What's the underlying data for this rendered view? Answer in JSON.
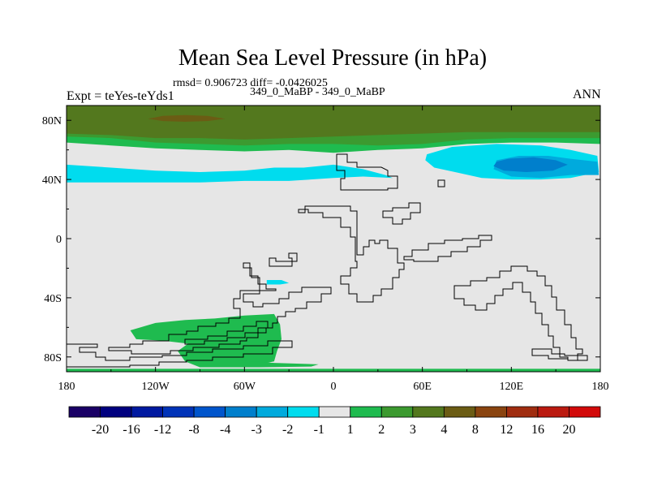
{
  "chart_data": {
    "type": "heatmap",
    "title": "Mean Sea Level Pressure (in hPa)",
    "subtitle_stats": "rmsd= 0.906723 diff= -0.0426025",
    "subtitle_runs": "349_0_MaBP - 349_0_MaBP",
    "left_label": "Expt = teYes-teYds1",
    "right_label": "ANN",
    "x_range": [
      -180,
      180
    ],
    "y_range": [
      -90,
      90
    ],
    "x_ticks": [
      {
        "value": -180,
        "label": "180"
      },
      {
        "value": -120,
        "label": "120W"
      },
      {
        "value": -60,
        "label": "60W"
      },
      {
        "value": 0,
        "label": "0"
      },
      {
        "value": 60,
        "label": "60E"
      },
      {
        "value": 120,
        "label": "120E"
      },
      {
        "value": 180,
        "label": "180"
      }
    ],
    "y_ticks": [
      {
        "value": 80,
        "label": "80N"
      },
      {
        "value": 40,
        "label": "40N"
      },
      {
        "value": 0,
        "label": "0"
      },
      {
        "value": -40,
        "label": "40S"
      },
      {
        "value": -80,
        "label": "80S"
      }
    ],
    "colorbar": {
      "levels": [
        "-20",
        "-16",
        "-12",
        "-8",
        "-4",
        "-3",
        "-2",
        "-1",
        "1",
        "2",
        "3",
        "4",
        "8",
        "12",
        "16",
        "20"
      ],
      "colors": [
        "#1a0066",
        "#00007f",
        "#0019a0",
        "#0033b8",
        "#0055cc",
        "#007fcc",
        "#00aadd",
        "#00dcee",
        "#e6e6e6",
        "#1fbb4f",
        "#3c9a30",
        "#53781e",
        "#6b5c14",
        "#8a4410",
        "#a02d10",
        "#bb1a10",
        "#d20a0a"
      ]
    },
    "background_color": "#e6e6e6",
    "regions": [
      {
        "name": "arctic-band-level-3",
        "color": "#3c9a30",
        "points": [
          [
            -180,
            68
          ],
          [
            -150,
            67
          ],
          [
            -120,
            64
          ],
          [
            -90,
            63
          ],
          [
            -60,
            62
          ],
          [
            -30,
            63
          ],
          [
            0,
            63
          ],
          [
            30,
            62
          ],
          [
            60,
            63
          ],
          [
            90,
            66
          ],
          [
            120,
            67
          ],
          [
            150,
            67
          ],
          [
            180,
            67
          ],
          [
            180,
            90
          ],
          [
            -180,
            90
          ]
        ]
      },
      {
        "name": "arctic-band-level-2",
        "color": "#1fbb4f",
        "points": [
          [
            -180,
            65
          ],
          [
            -150,
            63
          ],
          [
            -120,
            61
          ],
          [
            -90,
            60
          ],
          [
            -60,
            59
          ],
          [
            -30,
            60
          ],
          [
            0,
            58
          ],
          [
            30,
            60
          ],
          [
            60,
            61
          ],
          [
            90,
            64
          ],
          [
            120,
            65
          ],
          [
            150,
            65
          ],
          [
            180,
            64
          ],
          [
            180,
            68
          ],
          [
            150,
            68
          ],
          [
            120,
            68
          ],
          [
            90,
            67
          ],
          [
            60,
            64
          ],
          [
            30,
            63
          ],
          [
            0,
            64
          ],
          [
            -30,
            64
          ],
          [
            -60,
            63
          ],
          [
            -90,
            64
          ],
          [
            -120,
            65
          ],
          [
            -150,
            68
          ],
          [
            -180,
            69
          ]
        ]
      },
      {
        "name": "arctic-band-level-4",
        "color": "#53781e",
        "points": [
          [
            -180,
            90
          ],
          [
            -180,
            71
          ],
          [
            -150,
            70
          ],
          [
            -120,
            68
          ],
          [
            -90,
            68
          ],
          [
            -60,
            67
          ],
          [
            -30,
            68
          ],
          [
            0,
            69
          ],
          [
            30,
            70
          ],
          [
            60,
            71
          ],
          [
            90,
            72
          ],
          [
            120,
            72
          ],
          [
            150,
            72
          ],
          [
            180,
            72
          ],
          [
            180,
            90
          ]
        ]
      },
      {
        "name": "arctic-core-level-8",
        "color": "#6b5c14",
        "points": [
          [
            -125,
            81
          ],
          [
            -115,
            79.5
          ],
          [
            -100,
            79
          ],
          [
            -85,
            79.5
          ],
          [
            -73,
            81
          ],
          [
            -85,
            83
          ],
          [
            -100,
            83.5
          ],
          [
            -115,
            83
          ]
        ]
      },
      {
        "name": "north-atlantic-low-level-minus-1",
        "color": "#00dcee",
        "points": [
          [
            -180,
            50
          ],
          [
            -150,
            48
          ],
          [
            -120,
            46
          ],
          [
            -90,
            45
          ],
          [
            -60,
            46
          ],
          [
            -40,
            48
          ],
          [
            -20,
            48
          ],
          [
            0,
            50
          ],
          [
            20,
            47
          ],
          [
            35,
            43
          ],
          [
            40,
            41
          ],
          [
            20,
            42
          ],
          [
            0,
            41
          ],
          [
            -30,
            39
          ],
          [
            -60,
            39
          ],
          [
            -90,
            38
          ],
          [
            -120,
            38
          ],
          [
            -150,
            38
          ],
          [
            -180,
            38
          ]
        ]
      },
      {
        "name": "south-atlantic-patch-level-minus-1",
        "color": "#00dcee",
        "points": [
          [
            -45,
            -28
          ],
          [
            -35,
            -28
          ],
          [
            -30,
            -30
          ],
          [
            -36,
            -31
          ],
          [
            -45,
            -31
          ]
        ]
      },
      {
        "name": "pacific-low-level-minus-1",
        "color": "#00dcee",
        "points": [
          [
            63,
            57
          ],
          [
            80,
            62
          ],
          [
            110,
            64
          ],
          [
            140,
            63
          ],
          [
            160,
            60
          ],
          [
            178,
            56
          ],
          [
            179,
            45
          ],
          [
            160,
            41
          ],
          [
            140,
            40
          ],
          [
            120,
            40
          ],
          [
            100,
            41
          ],
          [
            82,
            45
          ],
          [
            68,
            48
          ],
          [
            62,
            53
          ]
        ]
      },
      {
        "name": "pacific-low-level-minus-2",
        "color": "#00aadd",
        "points": [
          [
            110,
            53
          ],
          [
            125,
            56
          ],
          [
            145,
            56
          ],
          [
            160,
            54
          ],
          [
            178,
            52
          ],
          [
            179,
            43
          ],
          [
            160,
            43
          ],
          [
            140,
            41
          ],
          [
            120,
            42
          ],
          [
            108,
            47
          ]
        ]
      },
      {
        "name": "pacific-low-core-level-minus-3",
        "color": "#007fcc",
        "points": [
          [
            110,
            52
          ],
          [
            118,
            54
          ],
          [
            135,
            55
          ],
          [
            150,
            53
          ],
          [
            158,
            50
          ],
          [
            148,
            46
          ],
          [
            130,
            45
          ],
          [
            115,
            46
          ],
          [
            108,
            49
          ]
        ]
      },
      {
        "name": "antarctic-high-level-2",
        "color": "#1fbb4f",
        "points": [
          [
            -137,
            -62
          ],
          [
            -120,
            -57
          ],
          [
            -100,
            -55
          ],
          [
            -80,
            -54
          ],
          [
            -60,
            -52
          ],
          [
            -40,
            -51
          ],
          [
            -36,
            -58
          ],
          [
            -35,
            -68
          ],
          [
            -38,
            -76
          ],
          [
            -40,
            -83
          ],
          [
            -55,
            -86
          ],
          [
            -80,
            -86
          ],
          [
            -100,
            -83
          ],
          [
            -105,
            -76
          ],
          [
            -98,
            -71
          ],
          [
            -115,
            -69
          ],
          [
            -133,
            -68
          ]
        ]
      },
      {
        "name": "antarctic-coast-strip-level-2",
        "color": "#1fbb4f",
        "points": [
          [
            -100,
            -83
          ],
          [
            -70,
            -82
          ],
          [
            -40,
            -84
          ],
          [
            -10,
            -85
          ],
          [
            -15,
            -86.5
          ],
          [
            -50,
            -87
          ],
          [
            -90,
            -87
          ]
        ]
      },
      {
        "name": "south-pole-strip-level-2",
        "color": "#1fbb4f",
        "points": [
          [
            -180,
            -88
          ],
          [
            180,
            -88
          ],
          [
            180,
            -90
          ],
          [
            -180,
            -90
          ]
        ]
      }
    ]
  }
}
